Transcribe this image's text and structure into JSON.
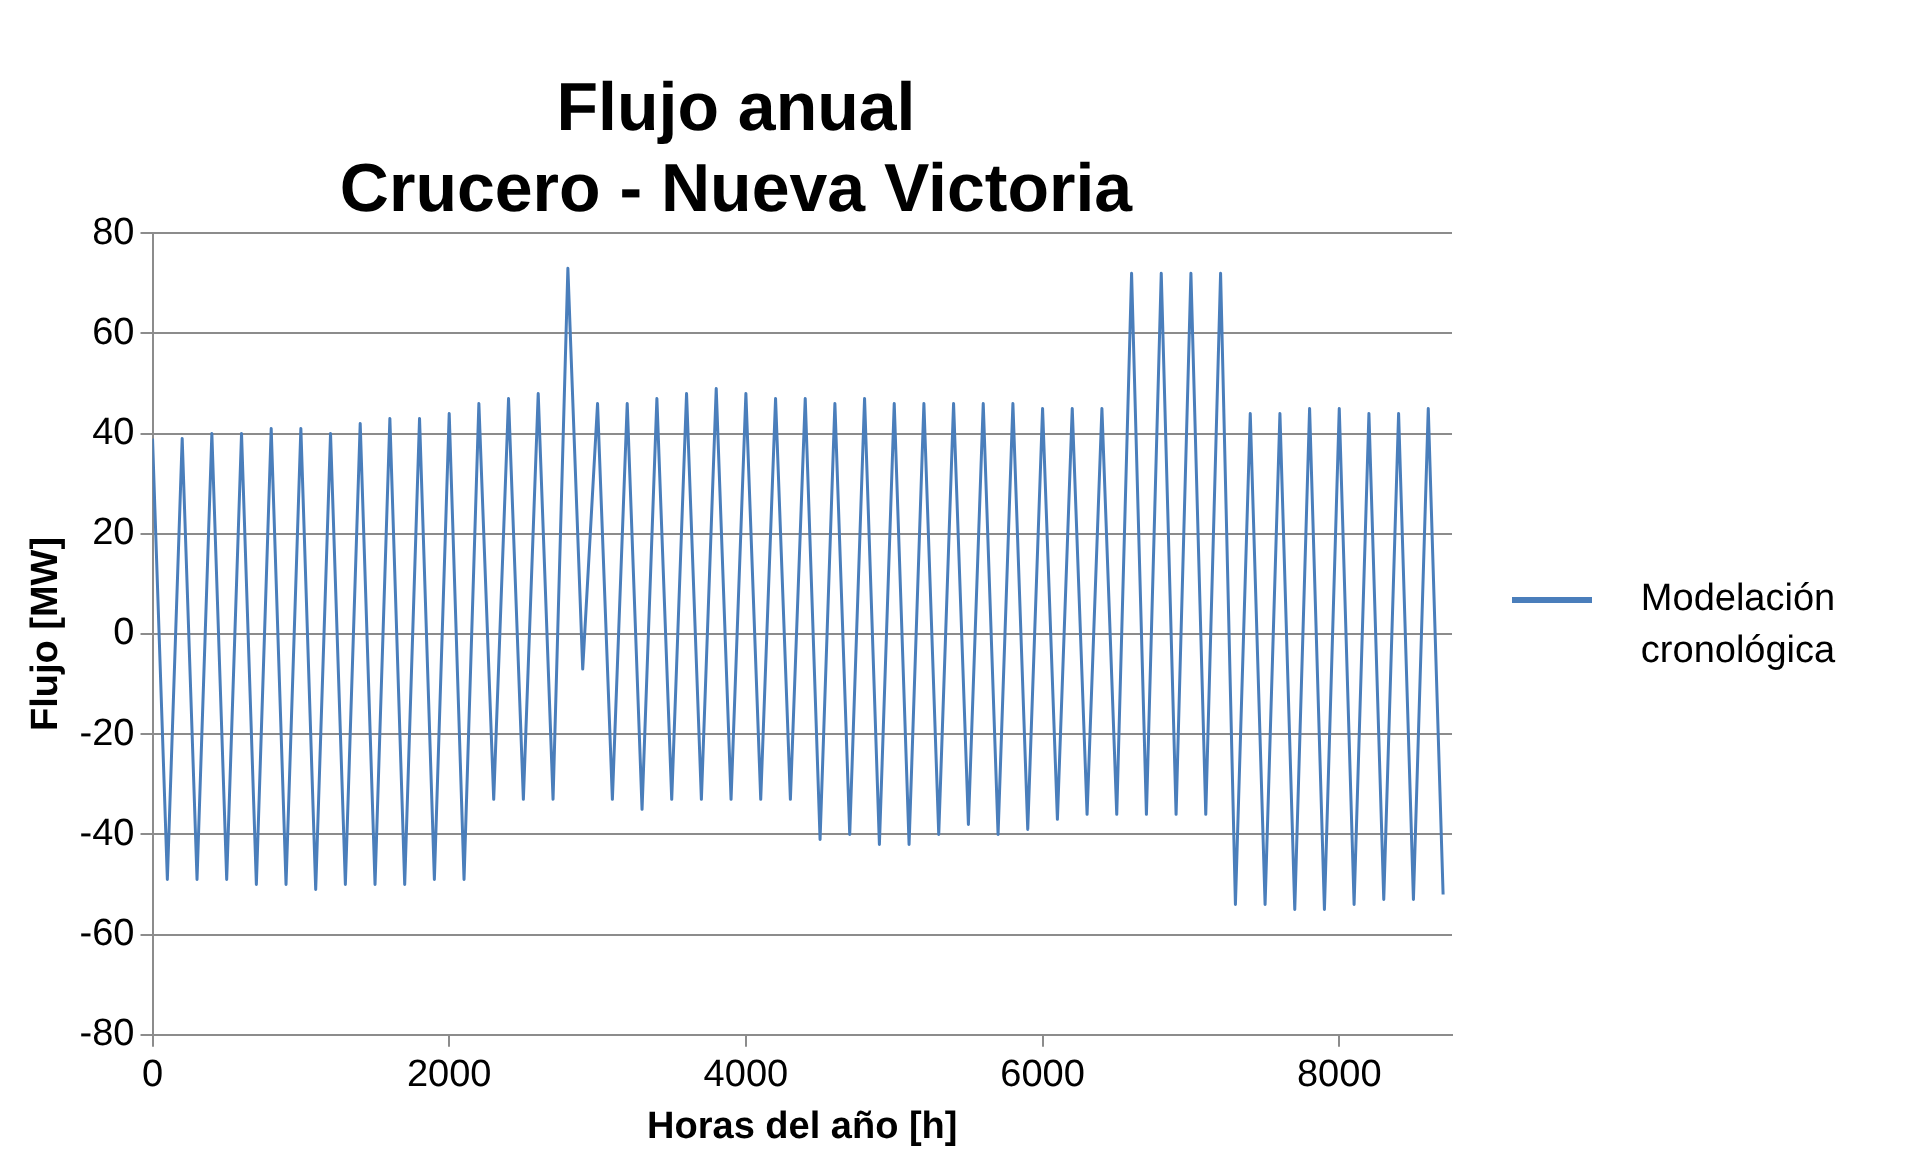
{
  "chart_data": {
    "type": "line",
    "title": "Flujo anual\nCrucero - Nueva Victoria",
    "xlabel": "Horas del año [h]",
    "ylabel": "Flujo [MW]",
    "x": [
      0,
      100,
      200,
      300,
      400,
      500,
      600,
      700,
      800,
      900,
      1000,
      1100,
      1200,
      1300,
      1400,
      1500,
      1600,
      1700,
      1800,
      1900,
      2000,
      2100,
      2200,
      2300,
      2400,
      2500,
      2600,
      2700,
      2800,
      2900,
      3000,
      3100,
      3200,
      3300,
      3400,
      3500,
      3600,
      3700,
      3800,
      3900,
      4000,
      4100,
      4200,
      4300,
      4400,
      4500,
      4600,
      4700,
      4800,
      4900,
      5000,
      5100,
      5200,
      5300,
      5400,
      5500,
      5600,
      5700,
      5800,
      5900,
      6000,
      6100,
      6200,
      6300,
      6400,
      6500,
      6600,
      6700,
      6800,
      6900,
      7000,
      7100,
      7200,
      7300,
      7400,
      7500,
      7600,
      7700,
      7800,
      7900,
      8000,
      8100,
      8200,
      8300,
      8400,
      8500,
      8600,
      8700
    ],
    "series": [
      {
        "name": "Modelación cronológica",
        "color": "#4a7ebb",
        "values": [
          39,
          -49,
          39,
          -49,
          40,
          -49,
          40,
          -50,
          41,
          -50,
          41,
          -51,
          40,
          -50,
          42,
          -50,
          43,
          -50,
          43,
          -49,
          44,
          -49,
          46,
          -33,
          47,
          -33,
          48,
          -33,
          73,
          -7,
          46,
          -33,
          46,
          -35,
          47,
          -33,
          48,
          -33,
          49,
          -33,
          48,
          -33,
          47,
          -33,
          47,
          -41,
          46,
          -40,
          47,
          -42,
          46,
          -42,
          46,
          -40,
          46,
          -38,
          46,
          -40,
          46,
          -39,
          45,
          -37,
          45,
          -36,
          45,
          -36,
          72,
          -36,
          72,
          -36,
          72,
          -36,
          72,
          -54,
          44,
          -54,
          44,
          -55,
          45,
          -55,
          45,
          -54,
          44,
          -53,
          44,
          -53,
          45,
          -52
        ]
      }
    ],
    "xlim": [
      0,
      8760
    ],
    "xticks": [
      0,
      2000,
      4000,
      6000,
      8000
    ],
    "ylim": [
      -80,
      80
    ],
    "yticks": [
      -80,
      -60,
      -40,
      -20,
      0,
      20,
      40,
      60,
      80
    ],
    "grid": "y",
    "legend": "right",
    "marker": "none",
    "line_style": "solid"
  }
}
